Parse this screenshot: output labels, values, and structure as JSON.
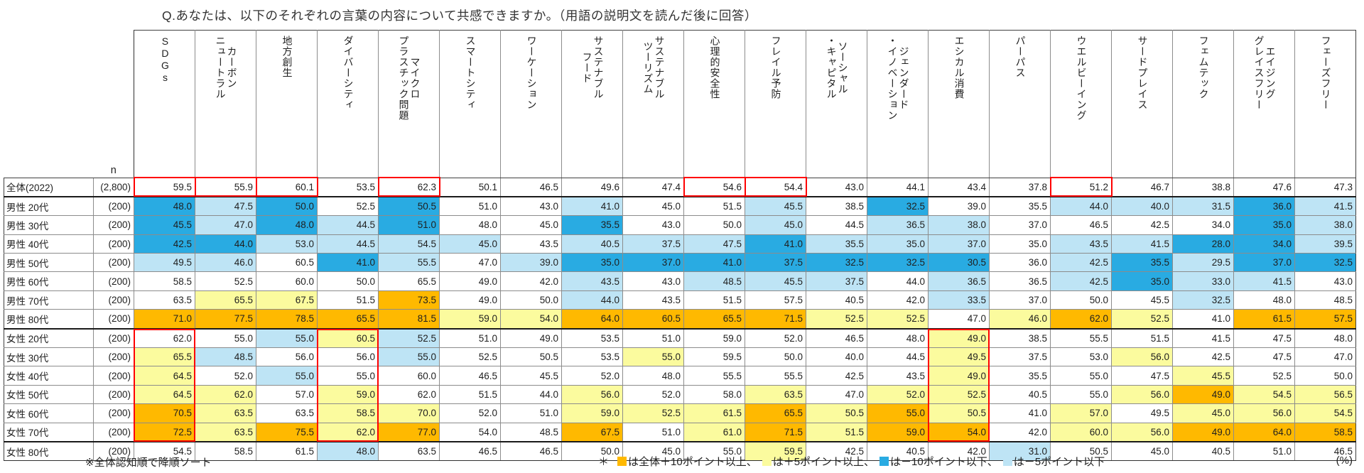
{
  "title": "Q.あなたは、以下のそれぞれの言葉の内容について共感できますか。（用語の説明文を読んだ後に回答）",
  "colors": {
    "orange": "#FFB900",
    "yellow": "#FBFB9E",
    "blue": "#29ABE2",
    "light_blue": "#BEE4F5",
    "red_box": "#FF0000"
  },
  "footer": {
    "sort_note": "※全体認知順で降順ソート",
    "asterisk": "＊",
    "legend_items": [
      {
        "color_key": "orange",
        "text": "は全体＋10ポイント以上、"
      },
      {
        "color_key": "yellow",
        "text": "は＋5ポイント以上、"
      },
      {
        "color_key": "blue",
        "text": "は－10ポイント以下、"
      },
      {
        "color_key": "light_blue",
        "text": "は－5ポイント以下"
      }
    ],
    "unit": "(%)"
  },
  "chart_data": {
    "type": "heatmap",
    "title": "Q.あなたは、以下のそれぞれの言葉の内容について共感できますか。（用語の説明文を読んだ後に回答）",
    "unit": "%",
    "n_header": "n",
    "columns": [
      "SDGs",
      "カーボン\nニュートラル",
      "地方創生",
      "ダイバーシティ",
      "マイクロ\nプラスチック問題",
      "スマートシティ",
      "ワーケーション",
      "サステナブル\nフード",
      "サステナブル\nツーリズム",
      "心理的安全性",
      "フレイル予防",
      "ソーシャル\n・キャピタル",
      "ジェンダード\n・イノベーション",
      "エシカル消費",
      "パーパス",
      "ウエルビーイング",
      "サードプレイス",
      "フェムテック",
      "エイジング\nグレイスフリー",
      "フェーズフリー"
    ],
    "color_codes": {
      "O": "orange +10pt以上",
      "Y": "yellow +5pt以上",
      "B": "blue -10pt以下",
      "b": "light_blue -5pt以下",
      "W": "none"
    },
    "rows": [
      {
        "label": "全体(2022)",
        "n": "(2,800)",
        "values": [
          59.5,
          55.9,
          60.1,
          53.5,
          62.3,
          50.1,
          46.5,
          49.6,
          47.4,
          54.6,
          54.4,
          43.0,
          44.1,
          43.4,
          37.8,
          51.2,
          46.7,
          38.8,
          47.6,
          47.3
        ],
        "colors": [
          "W",
          "W",
          "W",
          "W",
          "W",
          "W",
          "W",
          "W",
          "W",
          "W",
          "W",
          "W",
          "W",
          "W",
          "W",
          "W",
          "W",
          "W",
          "W",
          "W"
        ]
      },
      {
        "label": "男性 20代",
        "n": "(200)",
        "values": [
          48.0,
          47.5,
          50.0,
          52.5,
          50.5,
          51.0,
          43.0,
          41.0,
          45.0,
          51.5,
          45.5,
          38.5,
          32.5,
          39.0,
          35.5,
          44.0,
          40.0,
          31.5,
          36.0,
          41.5
        ],
        "colors": [
          "B",
          "b",
          "B",
          "W",
          "B",
          "W",
          "W",
          "b",
          "W",
          "W",
          "b",
          "W",
          "B",
          "W",
          "W",
          "b",
          "b",
          "b",
          "B",
          "b"
        ]
      },
      {
        "label": "男性 30代",
        "n": "(200)",
        "values": [
          45.5,
          47.0,
          48.0,
          44.5,
          51.0,
          48.0,
          45.0,
          35.5,
          43.0,
          50.0,
          45.0,
          44.5,
          36.5,
          38.0,
          37.0,
          46.5,
          42.5,
          34.0,
          35.0,
          38.0
        ],
        "colors": [
          "B",
          "b",
          "B",
          "b",
          "B",
          "W",
          "W",
          "B",
          "W",
          "W",
          "b",
          "W",
          "b",
          "b",
          "W",
          "W",
          "W",
          "W",
          "B",
          "b"
        ]
      },
      {
        "label": "男性 40代",
        "n": "(200)",
        "values": [
          42.5,
          44.0,
          53.0,
          44.5,
          54.5,
          45.0,
          43.5,
          40.5,
          37.5,
          47.5,
          41.0,
          35.5,
          35.0,
          37.0,
          35.0,
          43.5,
          41.5,
          28.0,
          34.0,
          39.5
        ],
        "colors": [
          "B",
          "B",
          "b",
          "b",
          "b",
          "b",
          "W",
          "b",
          "b",
          "b",
          "B",
          "b",
          "b",
          "b",
          "W",
          "b",
          "b",
          "B",
          "B",
          "b"
        ]
      },
      {
        "label": "男性 50代",
        "n": "(200)",
        "values": [
          49.5,
          46.0,
          60.5,
          41.0,
          55.5,
          47.0,
          39.0,
          35.0,
          37.0,
          41.0,
          37.5,
          32.5,
          32.5,
          30.5,
          36.0,
          42.5,
          35.5,
          29.5,
          37.0,
          32.5
        ],
        "colors": [
          "b",
          "b",
          "W",
          "B",
          "b",
          "W",
          "b",
          "B",
          "B",
          "B",
          "B",
          "B",
          "B",
          "B",
          "W",
          "b",
          "B",
          "b",
          "B",
          "B"
        ]
      },
      {
        "label": "男性 60代",
        "n": "(200)",
        "values": [
          58.5,
          52.5,
          60.0,
          50.0,
          65.5,
          49.0,
          42.0,
          43.5,
          43.0,
          48.5,
          45.5,
          37.5,
          44.0,
          36.5,
          36.5,
          42.5,
          35.0,
          33.0,
          41.5,
          43.0
        ],
        "colors": [
          "W",
          "W",
          "W",
          "W",
          "W",
          "W",
          "W",
          "b",
          "W",
          "b",
          "b",
          "b",
          "W",
          "b",
          "W",
          "b",
          "B",
          "b",
          "b",
          "W"
        ]
      },
      {
        "label": "男性 70代",
        "n": "(200)",
        "values": [
          63.5,
          65.5,
          67.5,
          51.5,
          73.5,
          49.0,
          50.0,
          44.0,
          43.5,
          51.5,
          57.5,
          40.5,
          42.0,
          33.5,
          37.0,
          50.0,
          45.5,
          32.5,
          48.0,
          48.5
        ],
        "colors": [
          "W",
          "Y",
          "Y",
          "W",
          "O",
          "W",
          "W",
          "b",
          "W",
          "W",
          "W",
          "W",
          "W",
          "b",
          "W",
          "W",
          "W",
          "b",
          "W",
          "W"
        ]
      },
      {
        "label": "男性 80代",
        "n": "(200)",
        "values": [
          71.0,
          77.5,
          78.5,
          65.5,
          81.5,
          59.0,
          54.0,
          64.0,
          60.5,
          65.5,
          71.5,
          52.5,
          52.5,
          47.0,
          46.0,
          62.0,
          52.5,
          41.0,
          61.5,
          57.5
        ],
        "colors": [
          "O",
          "O",
          "O",
          "O",
          "O",
          "Y",
          "Y",
          "O",
          "O",
          "O",
          "O",
          "Y",
          "Y",
          "W",
          "Y",
          "O",
          "Y",
          "W",
          "O",
          "O"
        ]
      },
      {
        "label": "女性 20代",
        "n": "(200)",
        "values": [
          62.0,
          55.0,
          55.0,
          60.5,
          52.5,
          51.0,
          49.0,
          53.5,
          51.0,
          59.0,
          52.0,
          46.5,
          48.0,
          49.0,
          38.5,
          55.5,
          51.5,
          41.5,
          47.5,
          48.0
        ],
        "colors": [
          "W",
          "W",
          "b",
          "Y",
          "b",
          "W",
          "W",
          "W",
          "W",
          "W",
          "W",
          "W",
          "W",
          "Y",
          "W",
          "W",
          "W",
          "W",
          "W",
          "W"
        ]
      },
      {
        "label": "女性 30代",
        "n": "(200)",
        "values": [
          65.5,
          48.5,
          56.0,
          56.0,
          55.0,
          52.5,
          50.5,
          53.5,
          55.0,
          59.5,
          50.0,
          40.0,
          44.5,
          49.5,
          37.5,
          53.0,
          56.0,
          42.5,
          47.5,
          47.0
        ],
        "colors": [
          "Y",
          "b",
          "W",
          "W",
          "b",
          "W",
          "W",
          "W",
          "Y",
          "W",
          "W",
          "W",
          "W",
          "Y",
          "W",
          "W",
          "Y",
          "W",
          "W",
          "W"
        ]
      },
      {
        "label": "女性 40代",
        "n": "(200)",
        "values": [
          64.5,
          52.0,
          55.0,
          55.0,
          60.0,
          46.5,
          45.5,
          52.0,
          48.0,
          55.5,
          55.5,
          42.5,
          43.5,
          49.0,
          35.5,
          55.0,
          47.5,
          45.5,
          52.5,
          50.0
        ],
        "colors": [
          "Y",
          "W",
          "b",
          "W",
          "W",
          "W",
          "W",
          "W",
          "W",
          "W",
          "W",
          "W",
          "W",
          "Y",
          "W",
          "W",
          "W",
          "Y",
          "W",
          "W"
        ]
      },
      {
        "label": "女性 50代",
        "n": "(200)",
        "values": [
          64.5,
          62.0,
          57.0,
          59.0,
          62.0,
          51.5,
          44.0,
          56.0,
          52.0,
          58.0,
          63.5,
          47.0,
          52.0,
          52.5,
          40.5,
          55.0,
          56.0,
          49.0,
          54.5,
          56.5
        ],
        "colors": [
          "Y",
          "Y",
          "W",
          "Y",
          "W",
          "W",
          "W",
          "Y",
          "W",
          "W",
          "Y",
          "W",
          "Y",
          "Y",
          "W",
          "W",
          "Y",
          "O",
          "Y",
          "Y"
        ]
      },
      {
        "label": "女性 60代",
        "n": "(200)",
        "values": [
          70.5,
          63.5,
          63.5,
          58.5,
          70.0,
          52.0,
          51.0,
          59.0,
          52.5,
          61.5,
          65.5,
          50.5,
          55.0,
          50.5,
          41.0,
          57.0,
          49.5,
          45.0,
          56.0,
          54.5
        ],
        "colors": [
          "O",
          "Y",
          "W",
          "Y",
          "Y",
          "W",
          "W",
          "Y",
          "Y",
          "Y",
          "O",
          "Y",
          "O",
          "Y",
          "W",
          "Y",
          "W",
          "Y",
          "Y",
          "Y"
        ]
      },
      {
        "label": "女性 70代",
        "n": "(200)",
        "values": [
          72.5,
          63.5,
          75.5,
          62.0,
          77.0,
          54.0,
          48.5,
          67.5,
          51.0,
          61.0,
          71.5,
          51.5,
          59.0,
          54.0,
          42.0,
          60.0,
          56.0,
          49.0,
          64.0,
          58.5
        ],
        "colors": [
          "O",
          "Y",
          "O",
          "Y",
          "O",
          "W",
          "W",
          "O",
          "W",
          "Y",
          "O",
          "Y",
          "O",
          "O",
          "W",
          "Y",
          "Y",
          "O",
          "O",
          "O"
        ]
      },
      {
        "label": "女性 80代",
        "n": "(200)",
        "values": [
          54.5,
          58.5,
          61.5,
          48.0,
          63.5,
          46.5,
          46.5,
          50.0,
          45.0,
          55.0,
          59.5,
          42.5,
          40.5,
          42.0,
          31.0,
          50.5,
          45.0,
          40.5,
          51.0,
          46.5
        ],
        "colors": [
          "W",
          "W",
          "W",
          "b",
          "W",
          "W",
          "W",
          "W",
          "W",
          "W",
          "Y",
          "W",
          "W",
          "W",
          "b",
          "W",
          "W",
          "W",
          "W",
          "W"
        ]
      }
    ],
    "red_highlight_cells": [
      {
        "row": 0,
        "cols": [
          0,
          1,
          2,
          4,
          9,
          10,
          15
        ]
      }
    ],
    "red_highlight_spans": [
      {
        "col": 0,
        "row_start": 8,
        "row_end": 13
      },
      {
        "col": 3,
        "row_start": 8,
        "row_end": 13
      },
      {
        "col": 13,
        "row_start": 8,
        "row_end": 13
      }
    ],
    "group_separator_after_rows": [
      0,
      7,
      13
    ],
    "thick_column_borders_left": [
      3,
      7
    ]
  }
}
